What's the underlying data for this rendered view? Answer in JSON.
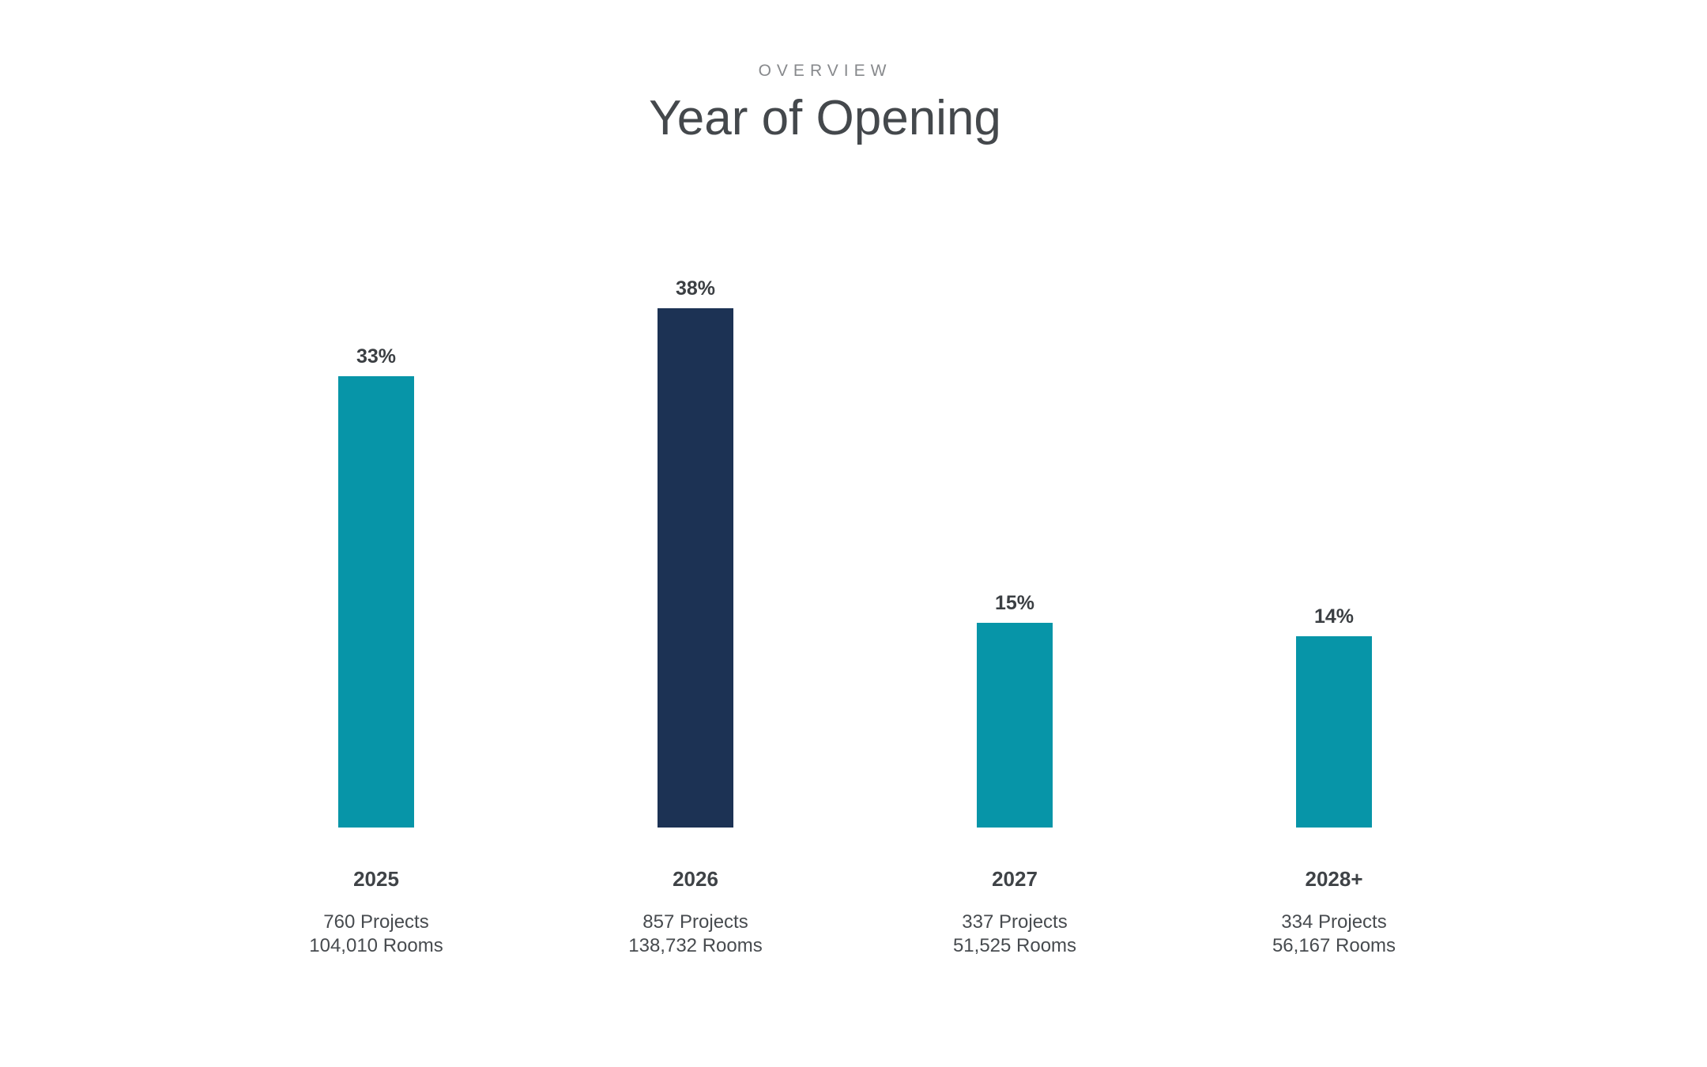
{
  "page": {
    "background": "#ffffff"
  },
  "header": {
    "kicker": "OVERVIEW",
    "title": "Year of Opening"
  },
  "chart_data": {
    "type": "bar",
    "title": "Year of Opening",
    "kicker": "OVERVIEW",
    "categories": [
      "2025",
      "2026",
      "2027",
      "2028+"
    ],
    "values": [
      33,
      38,
      15,
      14
    ],
    "value_unit": "%",
    "value_labels": [
      "33%",
      "38%",
      "15%",
      "14%"
    ],
    "projects": [
      760,
      857,
      337,
      334
    ],
    "rooms": [
      104010,
      138732,
      51525,
      56167
    ],
    "ylim": [
      0,
      40
    ],
    "grid": false,
    "legend": false,
    "axes_shown": false,
    "data_label_position": "above bars",
    "colors": {
      "default_bar": "#0795a8",
      "highlight_bar": "#1c3254",
      "label_text": "#3b3f43",
      "detail_text": "#474b4f",
      "kicker_text": "#87898c",
      "title_text": "#44484c"
    },
    "columns": [
      {
        "category": "2025",
        "value": 33,
        "value_label": "33%",
        "projects_label": "760 Projects",
        "rooms_label": "104,010 Rooms",
        "color": "#0795a8"
      },
      {
        "category": "2026",
        "value": 38,
        "value_label": "38%",
        "projects_label": "857 Projects",
        "rooms_label": "138,732 Rooms",
        "color": "#1c3254"
      },
      {
        "category": "2027",
        "value": 15,
        "value_label": "15%",
        "projects_label": "337 Projects",
        "rooms_label": "51,525 Rooms",
        "color": "#0795a8"
      },
      {
        "category": "2028+",
        "value": 14,
        "value_label": "14%",
        "projects_label": "334 Projects",
        "rooms_label": "56,167 Rooms",
        "color": "#0795a8"
      }
    ]
  }
}
